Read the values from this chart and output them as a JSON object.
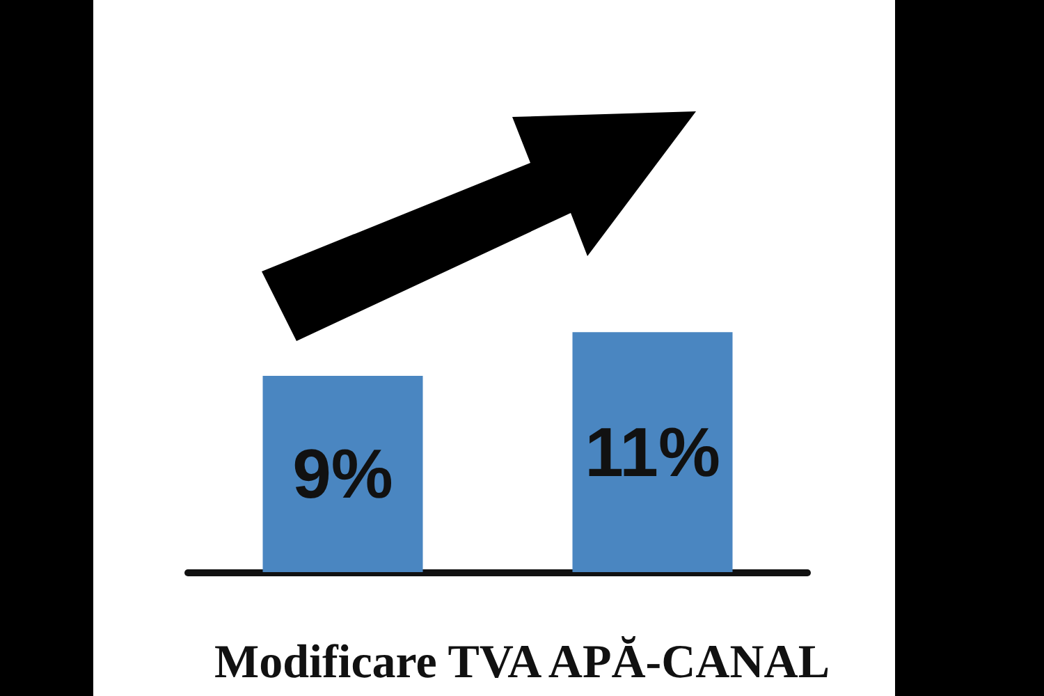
{
  "chart_data": {
    "type": "bar",
    "title": "Modificare TVA APĂ-CANAL",
    "categories": [
      null,
      null
    ],
    "values": [
      9,
      11
    ],
    "color": "#4a86c1",
    "value_labels": [
      "9%",
      "11%"
    ]
  }
}
